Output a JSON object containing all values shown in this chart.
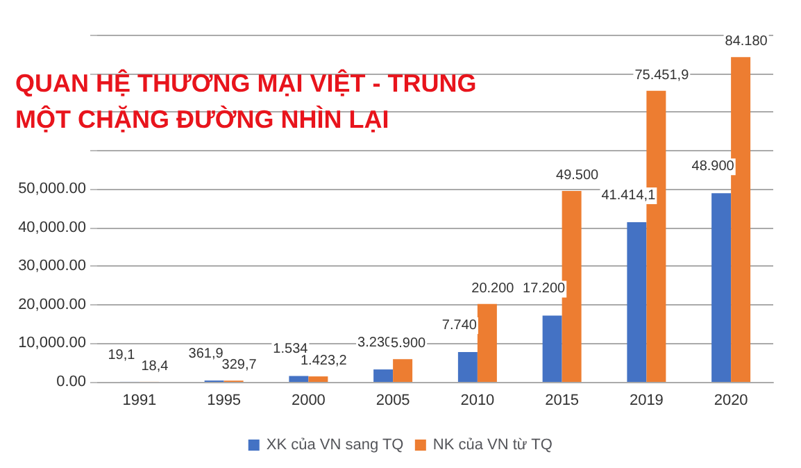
{
  "chart_data": {
    "type": "bar",
    "title": "QUAN HỆ THƯƠNG MẠI VIỆT - TRUNG\nMỘT CHẶNG ĐƯỜNG NHÌN LẠI",
    "categories": [
      "1991",
      "1995",
      "2000",
      "2005",
      "2010",
      "2015",
      "2019",
      "2020"
    ],
    "series": [
      {
        "name": "XK của VN sang TQ",
        "color": "#4472c4",
        "values": [
          19.1,
          361.9,
          1534,
          3230,
          7740,
          17200,
          41414.1,
          48900
        ],
        "value_labels": [
          "19,1",
          "361,9",
          "1.534",
          "3.230",
          "7.740",
          "17.200",
          "41.414,1",
          "48.900"
        ]
      },
      {
        "name": "NK của VN từ TQ",
        "color": "#ed7d31",
        "values": [
          18.4,
          329.7,
          1423.2,
          5900,
          20200,
          49500,
          75451.9,
          84180
        ],
        "value_labels": [
          "18,4",
          "329,7",
          "1.423,2",
          "5.900",
          "20.200",
          "49.500",
          "75.451,9",
          "84.180"
        ]
      }
    ],
    "ylim": [
      0,
      90000
    ],
    "yticks": [
      {
        "value": 0,
        "label": "0.00"
      },
      {
        "value": 10000,
        "label": "10,000.00"
      },
      {
        "value": 20000,
        "label": "20,000.00"
      },
      {
        "value": 30000,
        "label": "30,000.00"
      },
      {
        "value": 40000,
        "label": "40,000.00"
      },
      {
        "value": 50000,
        "label": "50,000.00"
      },
      {
        "value": 60000,
        "label": null
      },
      {
        "value": 70000,
        "label": null
      },
      {
        "value": 80000,
        "label": null
      },
      {
        "value": 90000,
        "label": null
      }
    ],
    "grid": "y",
    "legend": "bottom"
  }
}
